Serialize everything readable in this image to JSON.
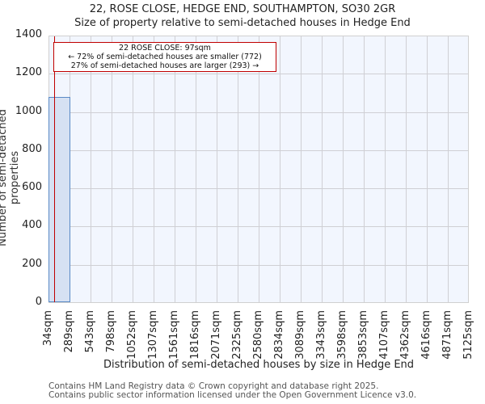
{
  "chart_data": {
    "type": "bar",
    "title": "22, ROSE CLOSE, HEDGE END, SOUTHAMPTON, SO30 2GR",
    "subtitle": "Size of property relative to semi-detached houses in Hedge End",
    "xlabel": "Distribution of semi-detached houses by size in Hedge End",
    "ylabel": "Number of semi-detached properties",
    "ylim": [
      0,
      1400
    ],
    "yticks": [
      "0",
      "200",
      "400",
      "600",
      "800",
      "1000",
      "1200",
      "1400"
    ],
    "categories": [
      "34sqm",
      "289sqm",
      "543sqm",
      "798sqm",
      "1052sqm",
      "1307sqm",
      "1561sqm",
      "1816sqm",
      "2071sqm",
      "2325sqm",
      "2580sqm",
      "2834sqm",
      "3089sqm",
      "3343sqm",
      "3598sqm",
      "3853sqm",
      "4107sqm",
      "4362sqm",
      "4616sqm",
      "4871sqm",
      "5125sqm"
    ],
    "values": [
      1075,
      0,
      0,
      0,
      0,
      0,
      0,
      0,
      0,
      0,
      0,
      0,
      0,
      0,
      0,
      0,
      0,
      0,
      0,
      0
    ],
    "grid": true,
    "bar_color": "#d6e1f3",
    "bar_edge_color": "#5a8ac6",
    "marker": {
      "value_sqm": 97,
      "color": "#c00000"
    },
    "annotation": {
      "line1": "22 ROSE CLOSE: 97sqm",
      "line2": "← 72% of semi-detached houses are smaller (772)",
      "line3": "27% of semi-detached houses are larger (293) →"
    }
  },
  "footer": {
    "line1": "Contains HM Land Registry data © Crown copyright and database right 2025.",
    "line2": "Contains public sector information licensed under the Open Government Licence v3.0."
  }
}
